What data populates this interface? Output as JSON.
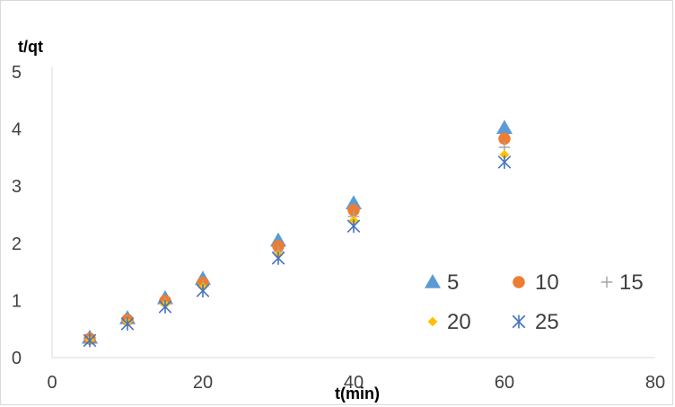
{
  "chart_data": {
    "type": "scatter",
    "title": "",
    "xlabel": "t(min)",
    "ylabel": "t/qt",
    "xlim": [
      0,
      80
    ],
    "ylim": [
      0,
      5
    ],
    "xticks": [
      0,
      20,
      40,
      60,
      80
    ],
    "yticks": [
      0,
      1,
      2,
      3,
      4,
      5
    ],
    "grid": false,
    "legend_position": "right",
    "series": [
      {
        "name": "5",
        "marker": "triangle",
        "color": "#5b9bd5",
        "x": [
          5,
          10,
          15,
          20,
          30,
          40,
          60
        ],
        "y": [
          0.35,
          0.69,
          1.04,
          1.38,
          2.05,
          2.7,
          4.02
        ]
      },
      {
        "name": "10",
        "marker": "circle",
        "color": "#ed7d31",
        "x": [
          5,
          10,
          15,
          20,
          30,
          40,
          60
        ],
        "y": [
          0.33,
          0.66,
          0.99,
          1.31,
          1.95,
          2.58,
          3.83
        ]
      },
      {
        "name": "15",
        "marker": "plus",
        "color": "#a5a5a5",
        "x": [
          5,
          10,
          15,
          20,
          30,
          40,
          60
        ],
        "y": [
          0.32,
          0.64,
          0.95,
          1.26,
          1.85,
          2.47,
          3.68
        ]
      },
      {
        "name": "20",
        "marker": "diamond",
        "color": "#ffc000",
        "x": [
          5,
          10,
          15,
          20,
          30,
          40,
          60
        ],
        "y": [
          0.31,
          0.62,
          0.93,
          1.23,
          1.8,
          2.4,
          3.55
        ]
      },
      {
        "name": "25",
        "marker": "star",
        "color": "#4472c4",
        "x": [
          5,
          10,
          15,
          20,
          30,
          40,
          60
        ],
        "y": [
          0.3,
          0.59,
          0.89,
          1.17,
          1.74,
          2.3,
          3.42
        ]
      }
    ]
  }
}
